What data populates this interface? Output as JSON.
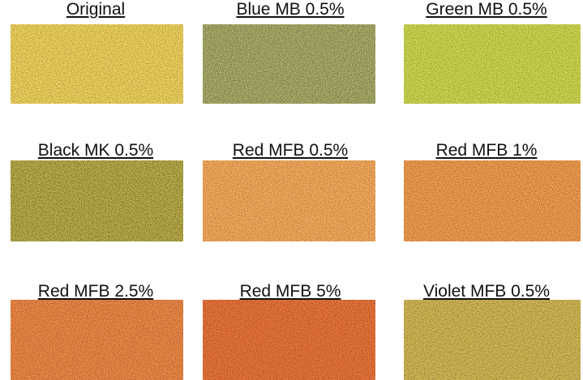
{
  "samples": [
    {
      "label": "Original",
      "base_color": "#eacf58",
      "speckle_dark": "#9c7b2c",
      "speckle_light": "#f8e79a"
    },
    {
      "label": "Blue MB 0.5%",
      "base_color": "#a7a860",
      "speckle_dark": "#4f5a4a",
      "speckle_light": "#d3cc84"
    },
    {
      "label": "Green MB 0.5%",
      "base_color": "#cad24a",
      "speckle_dark": "#7d8a2c",
      "speckle_light": "#e6ea80"
    },
    {
      "label": "Black MK 0.5%",
      "base_color": "#b4a844",
      "speckle_dark": "#5c5424",
      "speckle_light": "#d9cf70"
    },
    {
      "label": "Red MFB 0.5%",
      "base_color": "#eca65a",
      "speckle_dark": "#b06a2c",
      "speckle_light": "#f8c882"
    },
    {
      "label": "Red MFB 1%",
      "base_color": "#e8984c",
      "speckle_dark": "#a95e24",
      "speckle_light": "#f5ba74"
    },
    {
      "label": "Red MFB 2.5%",
      "base_color": "#e58444",
      "speckle_dark": "#a34f24",
      "speckle_light": "#f4a668"
    },
    {
      "label": "Red MFB 5%",
      "base_color": "#e27038",
      "speckle_dark": "#9c421c",
      "speckle_light": "#f09058"
    },
    {
      "label": "Violet MFB 0.5%",
      "base_color": "#cdb34e",
      "speckle_dark": "#7c6c34",
      "speckle_light": "#e6d27c"
    }
  ]
}
